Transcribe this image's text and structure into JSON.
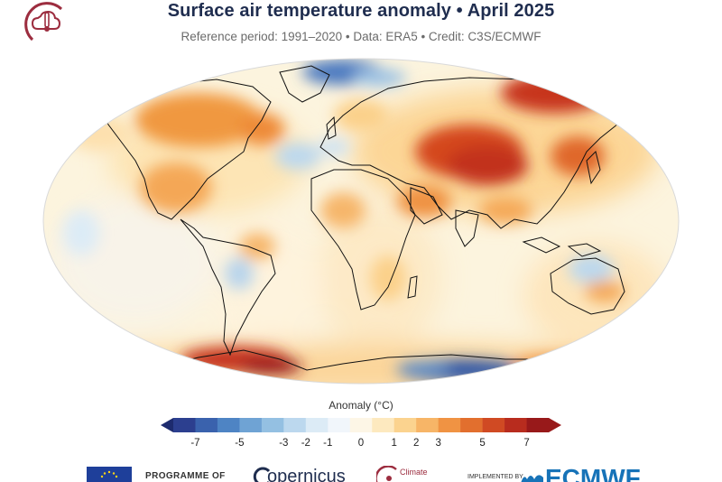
{
  "header": {
    "title": "Surface air temperature anomaly • April 2025",
    "subtitle": "Reference period: 1991–2020 • Data: ERA5 • Credit: C3S/ECMWF"
  },
  "colorbar": {
    "label": "Anomaly (°C)",
    "ticks": [
      "-7",
      "-5",
      "-3",
      "-2",
      "-1",
      "0",
      "1",
      "2",
      "3",
      "5",
      "7"
    ],
    "colors": [
      "#2c3f8f",
      "#3a62ad",
      "#4e84c4",
      "#6fa3d4",
      "#94c0e2",
      "#bcd8ee",
      "#dcebf6",
      "#f1f6fb",
      "#fdf6e6",
      "#fde9bf",
      "#fbd38f",
      "#f7b567",
      "#f09343",
      "#e26f2e",
      "#d04a23",
      "#b82c1e",
      "#98191a"
    ],
    "under_color": "#1d2b6e",
    "over_color": "#98191a"
  },
  "palette": {
    "ocean_base": "#fcf4de",
    "land_outline": "#111111",
    "title_color": "#1f2d4f",
    "warm_strong": "#c9321f",
    "warm_mid": "#f0a050",
    "warm_light": "#fde3b0",
    "cool_strong": "#2f56a8",
    "cool_light": "#b7d3ec"
  },
  "footer": {
    "programme": "PROGRAMME OF",
    "copernicus": "opernicus",
    "c3s": "Climate",
    "implemented": "IMPLEMENTED BY",
    "ecmwf": "ECMWF"
  },
  "icons": {
    "top_logo": "c3s-thermometer-logo",
    "eu": "eu-flag-icon"
  }
}
